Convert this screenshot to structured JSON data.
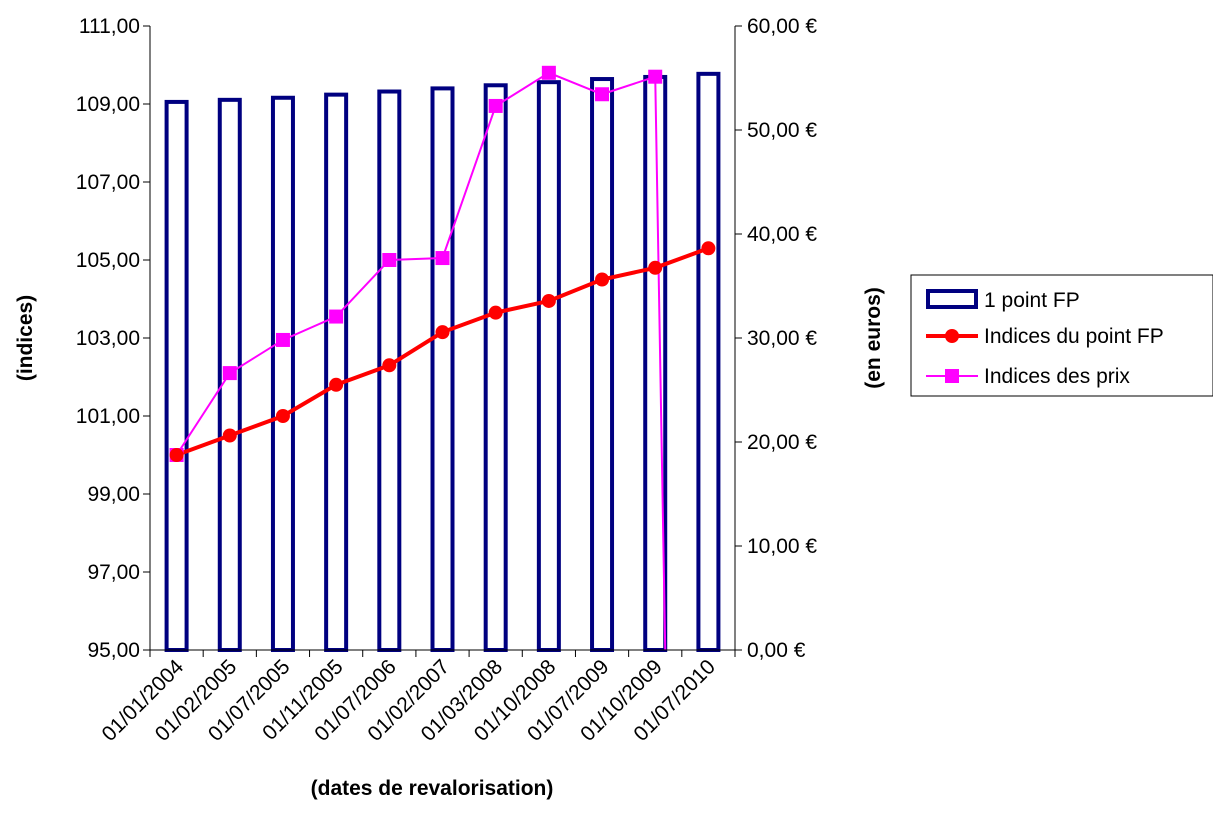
{
  "chart_data": {
    "type": "bar",
    "categories": [
      "01/01/2004",
      "01/02/2005",
      "01/07/2005",
      "01/11/2005",
      "01/07/2006",
      "01/02/2007",
      "01/03/2008",
      "01/10/2008",
      "01/07/2009",
      "01/10/2009",
      "01/07/2010"
    ],
    "xlabel": "(dates de revalorisation)",
    "ylabel_left": "(indices)",
    "ylabel_right": "(en euros)",
    "ylim_left": [
      95,
      111
    ],
    "ylim_right": [
      0,
      60
    ],
    "y_ticks_left": [
      "95,00",
      "97,00",
      "99,00",
      "101,00",
      "103,00",
      "105,00",
      "107,00",
      "109,00",
      "111,00"
    ],
    "y_ticks_right": [
      "0,00 €",
      "10,00 €",
      "20,00 €",
      "30,00 €",
      "40,00 €",
      "50,00 €",
      "60,00 €"
    ],
    "grid": false,
    "legend_position": "right",
    "series": [
      {
        "name": "1 point FP",
        "type": "bar",
        "axis": "right",
        "color": "#000080",
        "values": [
          52.7,
          52.9,
          53.1,
          53.4,
          53.7,
          54.0,
          54.3,
          54.6,
          54.9,
          55.1,
          55.4
        ]
      },
      {
        "name": "Indices du point FP",
        "type": "line",
        "axis": "left",
        "marker": "circle",
        "color": "#ff0000",
        "values": [
          100.0,
          100.5,
          101.0,
          101.8,
          102.3,
          103.15,
          103.65,
          103.95,
          104.5,
          104.8,
          105.3
        ]
      },
      {
        "name": "Indices des prix",
        "type": "line",
        "axis": "left",
        "marker": "square",
        "color": "#ff00ff",
        "values": [
          100.0,
          102.1,
          102.95,
          103.55,
          105.0,
          105.05,
          108.95,
          109.8,
          109.25,
          109.7,
          null
        ],
        "drop_to_baseline_after_last": true
      }
    ]
  }
}
